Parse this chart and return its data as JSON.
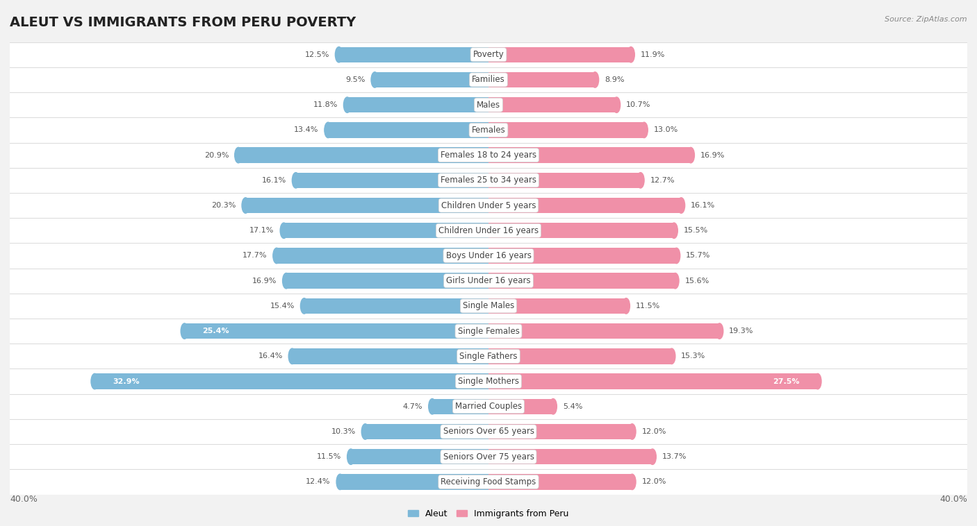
{
  "title": "ALEUT VS IMMIGRANTS FROM PERU POVERTY",
  "source": "Source: ZipAtlas.com",
  "categories": [
    "Poverty",
    "Families",
    "Males",
    "Females",
    "Females 18 to 24 years",
    "Females 25 to 34 years",
    "Children Under 5 years",
    "Children Under 16 years",
    "Boys Under 16 years",
    "Girls Under 16 years",
    "Single Males",
    "Single Females",
    "Single Fathers",
    "Single Mothers",
    "Married Couples",
    "Seniors Over 65 years",
    "Seniors Over 75 years",
    "Receiving Food Stamps"
  ],
  "aleut_values": [
    12.5,
    9.5,
    11.8,
    13.4,
    20.9,
    16.1,
    20.3,
    17.1,
    17.7,
    16.9,
    15.4,
    25.4,
    16.4,
    32.9,
    4.7,
    10.3,
    11.5,
    12.4
  ],
  "peru_values": [
    11.9,
    8.9,
    10.7,
    13.0,
    16.9,
    12.7,
    16.1,
    15.5,
    15.7,
    15.6,
    11.5,
    19.3,
    15.3,
    27.5,
    5.4,
    12.0,
    13.7,
    12.0
  ],
  "aleut_color": "#7db8d8",
  "peru_color": "#f090a8",
  "xlim": 40.0,
  "legend_aleut": "Aleut",
  "legend_peru": "Immigrants from Peru",
  "background_color": "#f2f2f2",
  "row_color_odd": "#ffffff",
  "row_color_even": "#e8e8e8",
  "title_fontsize": 14,
  "label_fontsize": 8.5,
  "value_fontsize": 8.0
}
